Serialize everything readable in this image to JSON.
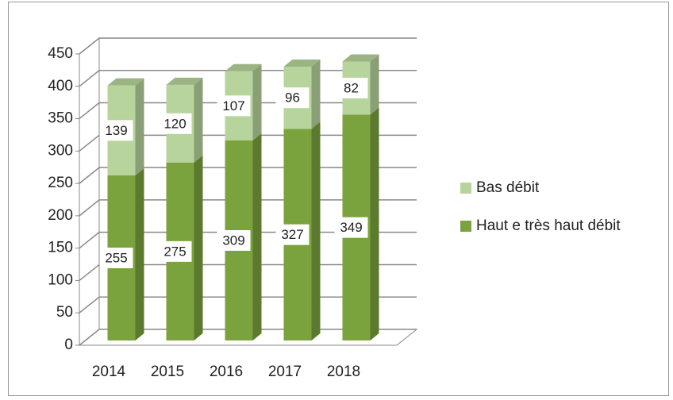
{
  "chart_data": {
    "type": "bar3d_stacked",
    "categories": [
      "2014",
      "2015",
      "2016",
      "2017",
      "2018"
    ],
    "series": [
      {
        "name": "Haut e très haut débit",
        "color": "#7aa33d",
        "values": [
          255,
          275,
          309,
          327,
          349
        ]
      },
      {
        "name": "Bas débit",
        "color": "#b7d49c",
        "values": [
          139,
          120,
          107,
          96,
          82
        ]
      }
    ],
    "ylim": [
      0,
      450
    ],
    "yticks": [
      0,
      50,
      100,
      150,
      200,
      250,
      300,
      350,
      400,
      450
    ],
    "grid": true,
    "legend": "right"
  }
}
